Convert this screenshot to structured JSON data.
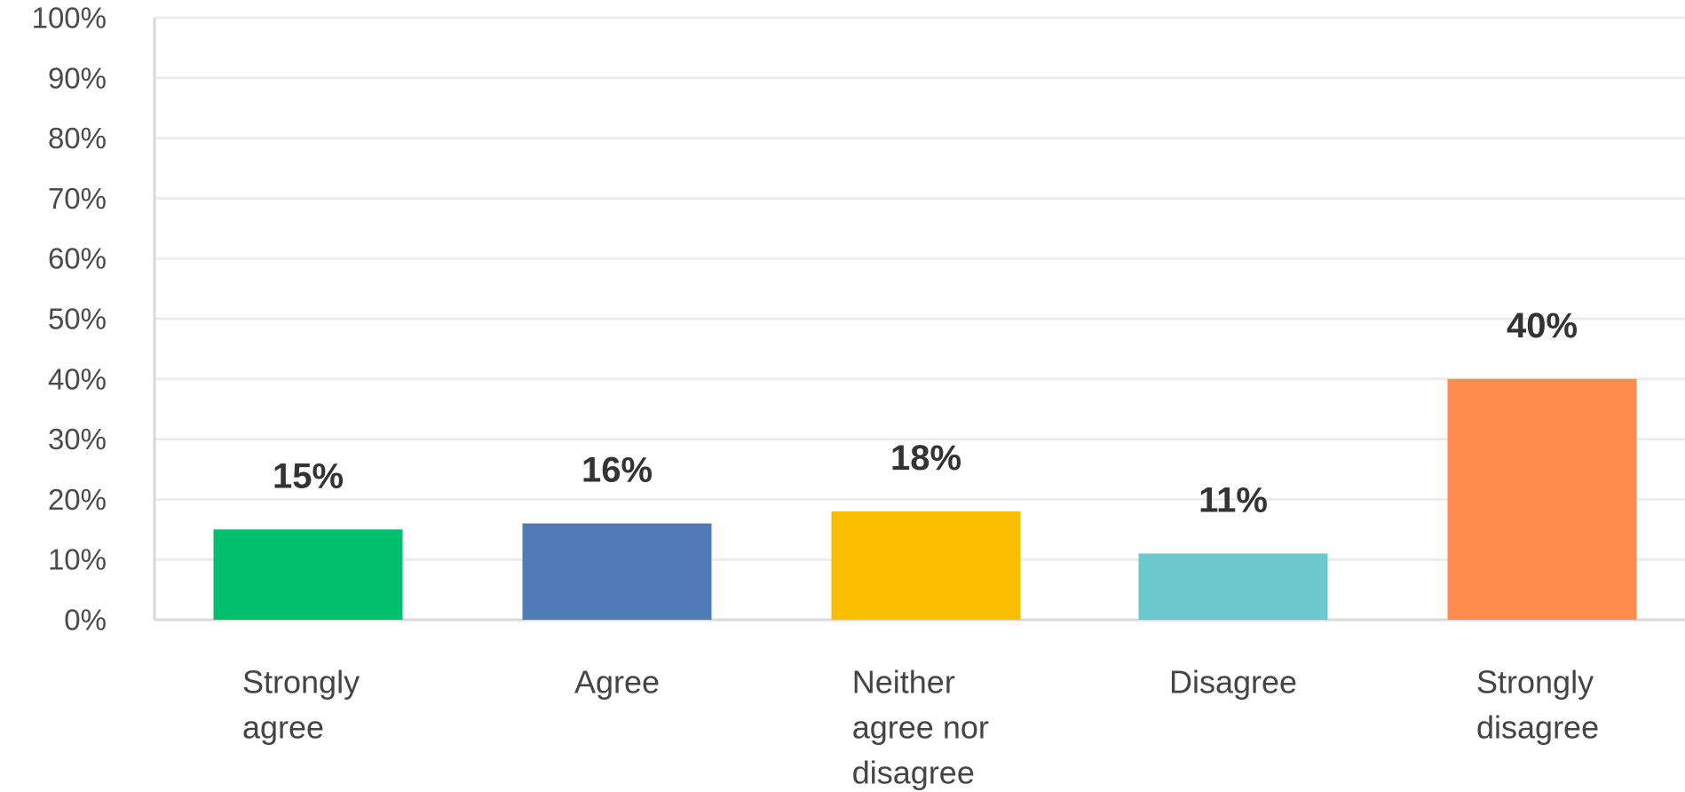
{
  "chart_data": {
    "type": "bar",
    "categories": [
      [
        "Strongly",
        "agree"
      ],
      [
        "Agree"
      ],
      [
        "Neither",
        "agree nor",
        "disagree"
      ],
      [
        "Disagree"
      ],
      [
        "Strongly",
        "disagree"
      ]
    ],
    "values": [
      15,
      16,
      18,
      11,
      40
    ],
    "value_labels": [
      "15%",
      "16%",
      "18%",
      "11%",
      "40%"
    ],
    "colors": [
      "#00bf6f",
      "#507cb6",
      "#f9be00",
      "#6bc8cd",
      "#ff8b4f"
    ],
    "yticks": [
      "0%",
      "10%",
      "20%",
      "30%",
      "40%",
      "50%",
      "60%",
      "70%",
      "80%",
      "90%",
      "100%"
    ],
    "ylim": [
      0,
      100
    ],
    "grid": true,
    "title": "",
    "xlabel": "",
    "ylabel": ""
  }
}
